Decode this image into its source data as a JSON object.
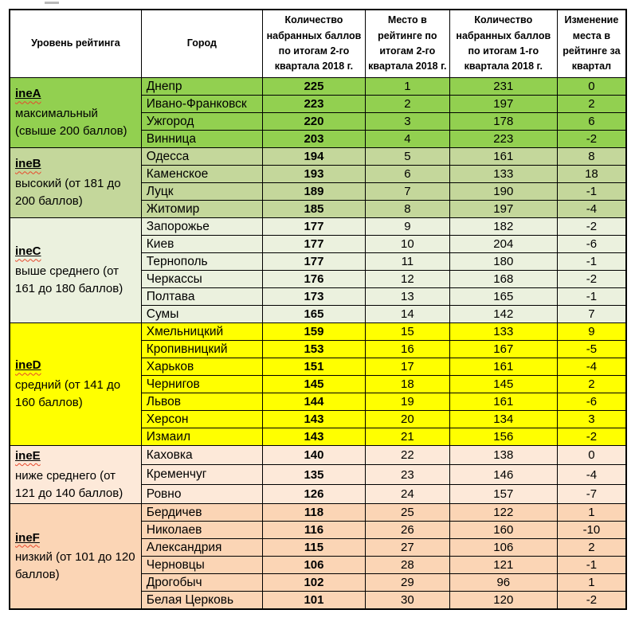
{
  "colors": {
    "border": "#000000",
    "header_background": "#ffffff",
    "spellcheck_underline": "#e8472b"
  },
  "table": {
    "headers": [
      "Уровень рейтинга",
      "Город",
      "Количество набранных баллов по итогам 2-го квартала 2018 г.",
      "Место в рейтинге по итогам 2-го квартала 2018 г.",
      "Количество набранных баллов по итогам 1-го квартала 2018 г.",
      "Изменение места в рейтинге за квартал"
    ],
    "groups": [
      {
        "code": "ineA",
        "description": "максимальный (свыше 200 баллов)",
        "color": "#92D050",
        "rows": [
          {
            "city": "Днепр",
            "score_q2": "225",
            "rank_q2": "1",
            "score_q1": "231",
            "change": "0"
          },
          {
            "city": "Ивано-Франковск",
            "score_q2": "223",
            "rank_q2": "2",
            "score_q1": "197",
            "change": "2"
          },
          {
            "city": "Ужгород",
            "score_q2": "220",
            "rank_q2": "3",
            "score_q1": "178",
            "change": "6"
          },
          {
            "city": "Винница",
            "score_q2": "203",
            "rank_q2": "4",
            "score_q1": "223",
            "change": "-2"
          }
        ]
      },
      {
        "code": "ineB",
        "description": "высокий (от 181 до 200 баллов)",
        "color": "#C4D79B",
        "rows": [
          {
            "city": "Одесса",
            "score_q2": "194",
            "rank_q2": "5",
            "score_q1": "161",
            "change": "8"
          },
          {
            "city": "Каменское",
            "score_q2": "193",
            "rank_q2": "6",
            "score_q1": "133",
            "change": "18"
          },
          {
            "city": "Луцк",
            "score_q2": "189",
            "rank_q2": "7",
            "score_q1": "190",
            "change": "-1"
          },
          {
            "city": "Житомир",
            "score_q2": "185",
            "rank_q2": "8",
            "score_q1": "197",
            "change": "-4"
          }
        ]
      },
      {
        "code": "ineC",
        "description": "выше среднего (от 161 до 180 баллов)",
        "color": "#EBF1DE",
        "rows": [
          {
            "city": "Запорожье",
            "score_q2": "177",
            "rank_q2": "9",
            "score_q1": "182",
            "change": "-2"
          },
          {
            "city": "Киев",
            "score_q2": "177",
            "rank_q2": "10",
            "score_q1": "204",
            "change": "-6"
          },
          {
            "city": "Тернополь",
            "score_q2": "177",
            "rank_q2": "11",
            "score_q1": "180",
            "change": "-1"
          },
          {
            "city": "Черкассы",
            "score_q2": "176",
            "rank_q2": "12",
            "score_q1": "168",
            "change": "-2"
          },
          {
            "city": "Полтава",
            "score_q2": "173",
            "rank_q2": "13",
            "score_q1": "165",
            "change": "-1"
          },
          {
            "city": "Сумы",
            "score_q2": "165",
            "rank_q2": "14",
            "score_q1": "142",
            "change": "7"
          }
        ]
      },
      {
        "code": "ineD",
        "description": "средний (от 141 до 160 баллов)",
        "color": "#FFFF00",
        "rows": [
          {
            "city": "Хмельницкий",
            "score_q2": "159",
            "rank_q2": "15",
            "score_q1": "133",
            "change": "9"
          },
          {
            "city": "Кропивницкий",
            "score_q2": "153",
            "rank_q2": "16",
            "score_q1": "167",
            "change": "-5"
          },
          {
            "city": "Харьков",
            "score_q2": "151",
            "rank_q2": "17",
            "score_q1": "161",
            "change": "-4"
          },
          {
            "city": "Чернигов",
            "score_q2": "145",
            "rank_q2": "18",
            "score_q1": "145",
            "change": "2"
          },
          {
            "city": "Львов",
            "score_q2": "144",
            "rank_q2": "19",
            "score_q1": "161",
            "change": "-6"
          },
          {
            "city": "Херсон",
            "score_q2": "143",
            "rank_q2": "20",
            "score_q1": "134",
            "change": "3"
          },
          {
            "city": "Измаил",
            "score_q2": "143",
            "rank_q2": "21",
            "score_q1": "156",
            "change": "-2"
          }
        ]
      },
      {
        "code": "ineE",
        "description": "ниже среднего (от 121 до 140 баллов)",
        "color": "#FDE9D9",
        "rows": [
          {
            "city": "Каховка",
            "score_q2": "140",
            "rank_q2": "22",
            "score_q1": "138",
            "change": "0"
          },
          {
            "city": "Кременчуг",
            "score_q2": "135",
            "rank_q2": "23",
            "score_q1": "146",
            "change": "-4"
          },
          {
            "city": "Ровно",
            "score_q2": "126",
            "rank_q2": "24",
            "score_q1": "157",
            "change": "-7"
          }
        ]
      },
      {
        "code": "ineF",
        "description": "низкий (от 101 до 120 баллов)",
        "color": "#FBD5B5",
        "rows": [
          {
            "city": "Бердичев",
            "score_q2": "118",
            "rank_q2": "25",
            "score_q1": "122",
            "change": "1"
          },
          {
            "city": "Николаев",
            "score_q2": "116",
            "rank_q2": "26",
            "score_q1": "160",
            "change": "-10"
          },
          {
            "city": "Александрия",
            "score_q2": "115",
            "rank_q2": "27",
            "score_q1": "106",
            "change": "2"
          },
          {
            "city": "Черновцы",
            "score_q2": "106",
            "rank_q2": "28",
            "score_q1": "121",
            "change": "-1"
          },
          {
            "city": "Дрогобыч",
            "score_q2": "102",
            "rank_q2": "29",
            "score_q1": "96",
            "change": "1"
          },
          {
            "city": "Белая Церковь",
            "score_q2": "101",
            "rank_q2": "30",
            "score_q1": "120",
            "change": "-2"
          }
        ]
      }
    ]
  }
}
